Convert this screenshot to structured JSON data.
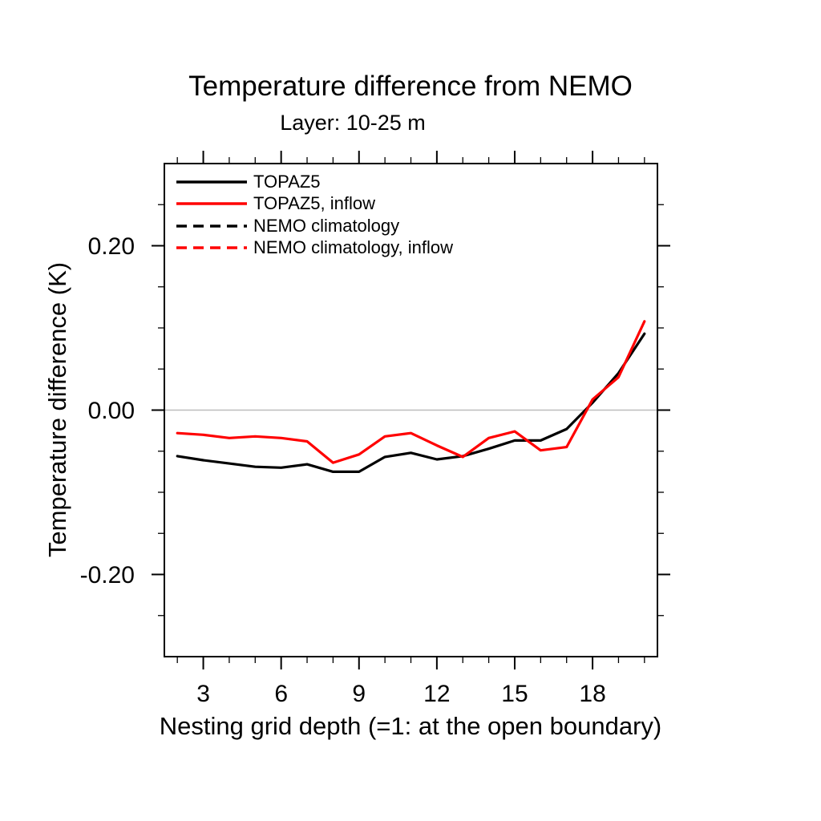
{
  "chart_data": {
    "type": "line",
    "title": "Temperature difference from NEMO",
    "subtitle": "Layer: 10-25 m",
    "xlabel": "Nesting grid depth (=1: at the open boundary)",
    "ylabel": "Temperature difference (K)",
    "xlim": [
      1.5,
      20.5
    ],
    "ylim": [
      -0.3,
      0.3
    ],
    "x_major_ticks": [
      3,
      6,
      9,
      12,
      15,
      18
    ],
    "x_minor_step": 1,
    "y_major_ticks": [
      0.2,
      0.0,
      -0.2
    ],
    "y_major_labels": [
      "0.20",
      "0.00",
      "-0.20"
    ],
    "y_minor_step": 0.05,
    "grid": false,
    "zero_line": {
      "y": 0.0,
      "color": "#bcbcbc"
    },
    "legend_position": "top-left-inside",
    "frame_color": "#000000",
    "x": [
      2,
      3,
      4,
      5,
      6,
      7,
      8,
      9,
      10,
      11,
      12,
      13,
      14,
      15,
      16,
      17,
      18,
      19,
      20
    ],
    "series": [
      {
        "name": "TOPAZ5",
        "color": "#000000",
        "dash": "solid",
        "values": [
          -0.056,
          -0.061,
          -0.065,
          -0.069,
          -0.07,
          -0.066,
          -0.075,
          -0.075,
          -0.057,
          -0.052,
          -0.06,
          -0.056,
          -0.047,
          -0.037,
          -0.037,
          -0.023,
          0.009,
          0.045,
          0.093
        ]
      },
      {
        "name": "TOPAZ5, inflow",
        "color": "#ff0000",
        "dash": "solid",
        "values": [
          -0.028,
          -0.03,
          -0.034,
          -0.032,
          -0.034,
          -0.038,
          -0.064,
          -0.054,
          -0.032,
          -0.028,
          -0.043,
          -0.057,
          -0.034,
          -0.026,
          -0.049,
          -0.045,
          0.013,
          0.04,
          0.108
        ]
      },
      {
        "name": "NEMO climatology",
        "color": "#000000",
        "dash": "dashed",
        "values": null
      },
      {
        "name": "NEMO climatology, inflow",
        "color": "#ff0000",
        "dash": "dashed",
        "values": null
      }
    ]
  }
}
